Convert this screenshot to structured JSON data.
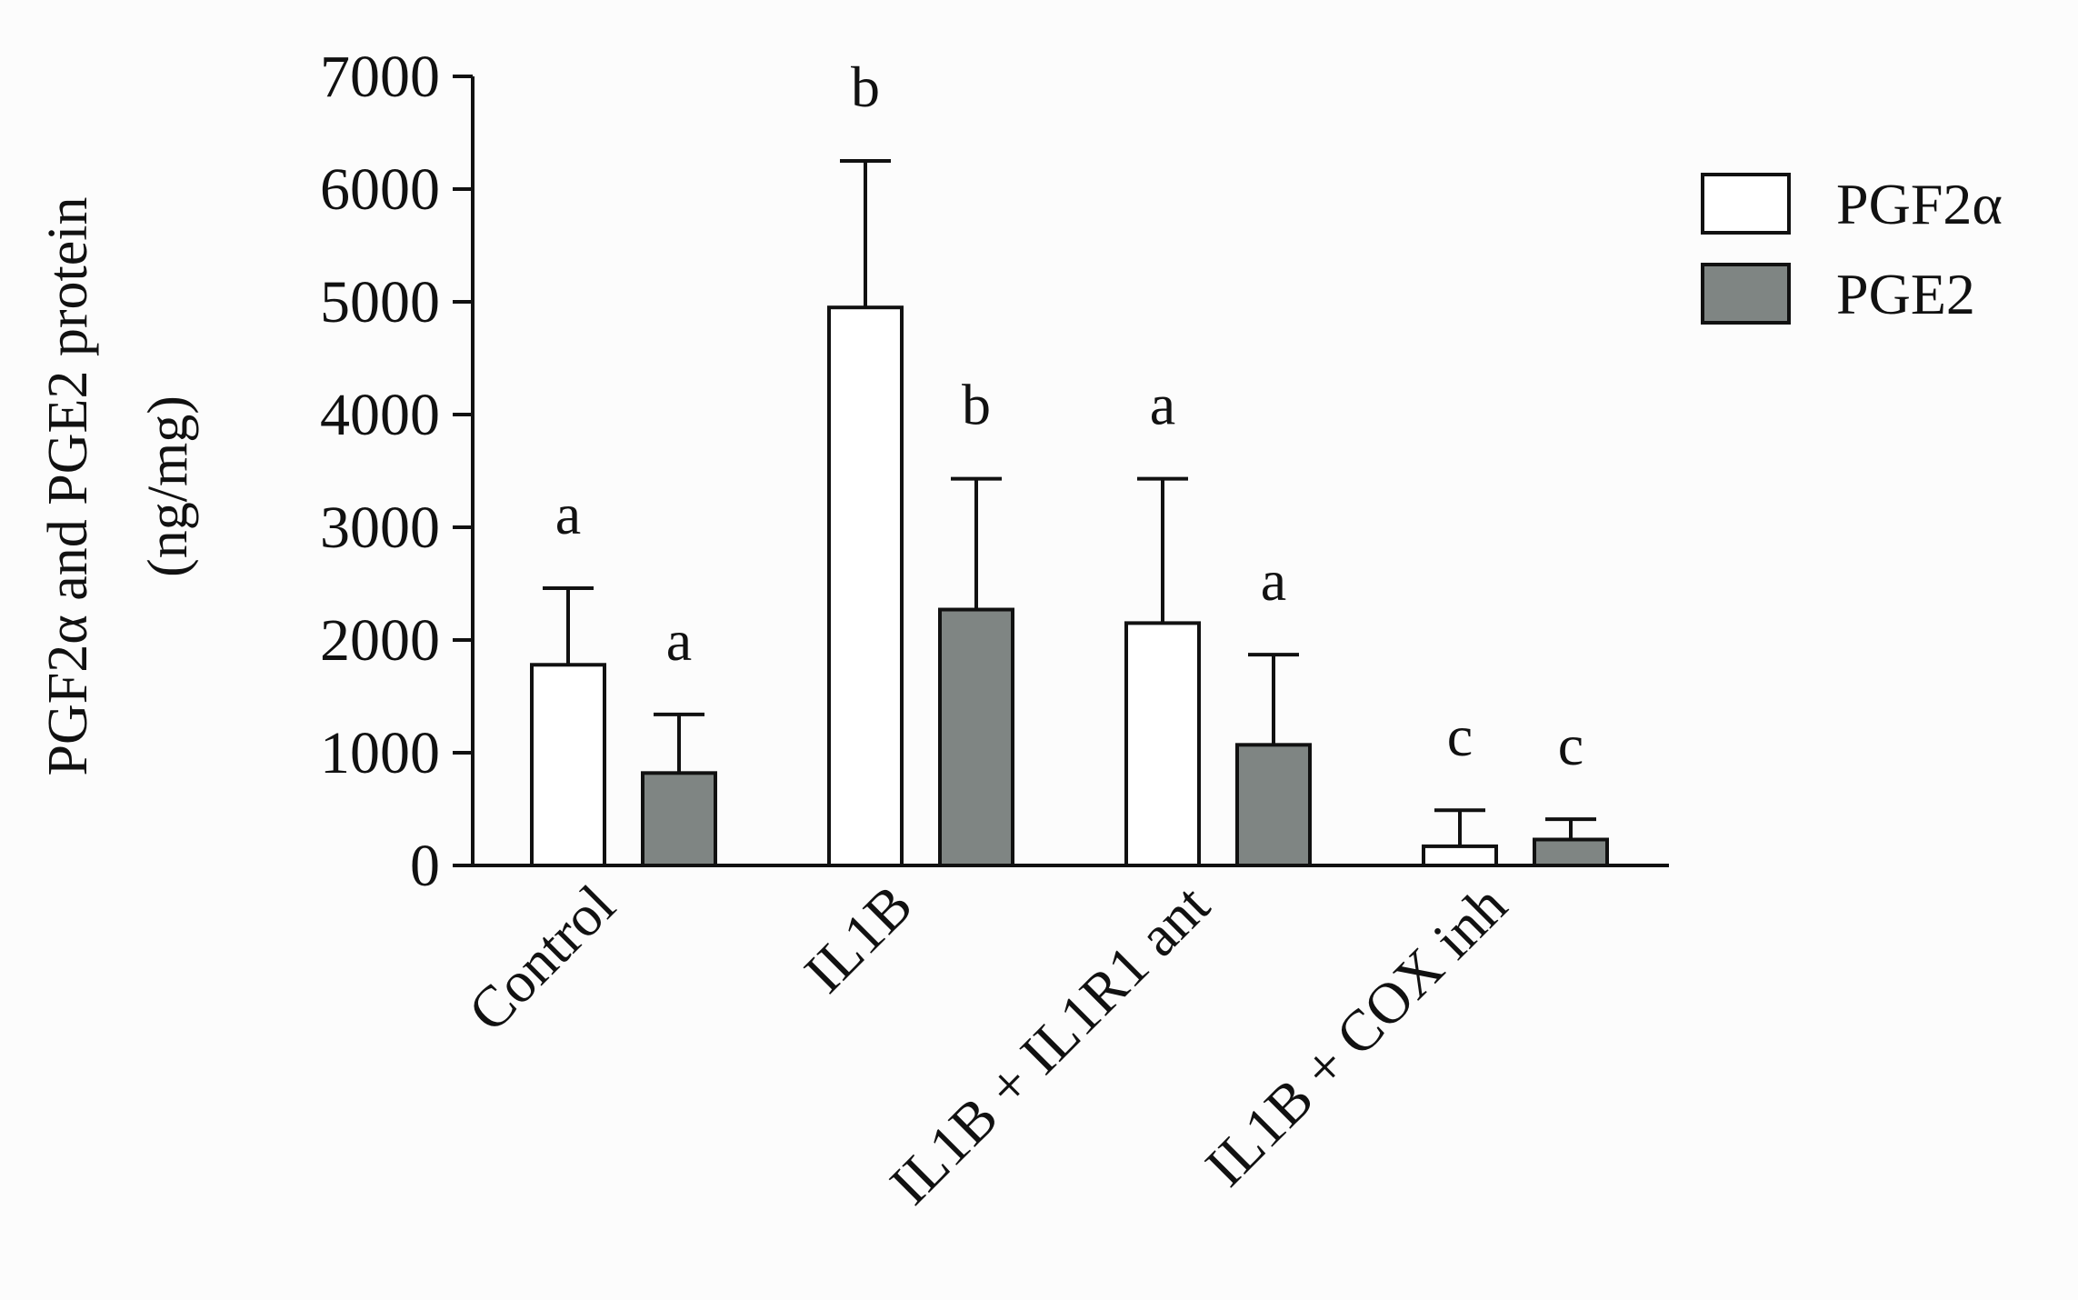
{
  "chart_data": {
    "type": "bar",
    "title": "",
    "xlabel": "",
    "ylabel": "PGF2α and PGE2 protein",
    "ylabel_unit": "(ng/mg)",
    "ylim": [
      0,
      7000
    ],
    "yticks": [
      "0",
      "1000",
      "2000",
      "3000",
      "4000",
      "5000",
      "6000",
      "7000"
    ],
    "categories": [
      "Control",
      "IL1B",
      "IL1B + IL1R1 ant",
      "IL1B + COX inh"
    ],
    "legend_position": "top-right",
    "series": [
      {
        "name": "PGF2α",
        "color": "#ffffff",
        "values": [
          1780,
          4950,
          2150,
          170
        ],
        "errors": [
          680,
          1300,
          1280,
          320
        ],
        "letters": [
          "a",
          "b",
          "a",
          "c"
        ]
      },
      {
        "name": "PGE2",
        "color": "#7f8583",
        "values": [
          820,
          2270,
          1070,
          230
        ],
        "errors": [
          520,
          1160,
          800,
          180
        ],
        "letters": [
          "a",
          "b",
          "a",
          "c"
        ]
      }
    ]
  }
}
